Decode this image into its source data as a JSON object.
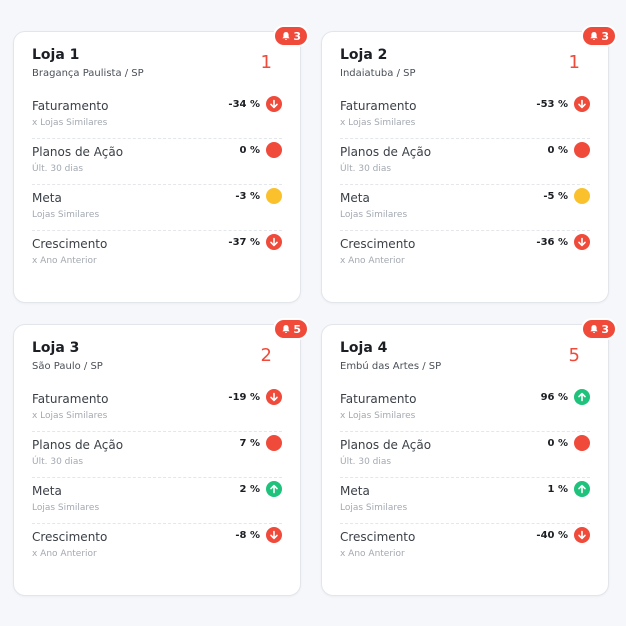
{
  "colors": {
    "red": "#f04a3a",
    "yellow": "#fbc12d",
    "green": "#1fc27b"
  },
  "cards": [
    {
      "title": "Loja 1",
      "location": "Bragança Paulista / SP",
      "rank": "1",
      "alerts": "3",
      "metrics": [
        {
          "label": "Faturamento",
          "sub": "x Lojas Similares",
          "value": "-34 %",
          "status": "down-arrow-icon"
        },
        {
          "label": "Planos de Ação",
          "sub": "Últ. 30 dias",
          "value": "0 %",
          "status": "red-dot"
        },
        {
          "label": "Meta",
          "sub": "Lojas Similares",
          "value": "-3 %",
          "status": "yellow-dot"
        },
        {
          "label": "Crescimento",
          "sub": "x Ano Anterior",
          "value": "-37 %",
          "status": "down-arrow-icon"
        }
      ]
    },
    {
      "title": "Loja 2",
      "location": "Indaiatuba / SP",
      "rank": "1",
      "alerts": "3",
      "metrics": [
        {
          "label": "Faturamento",
          "sub": "x Lojas Similares",
          "value": "-53 %",
          "status": "down-arrow-icon"
        },
        {
          "label": "Planos de Ação",
          "sub": "Últ. 30 dias",
          "value": "0 %",
          "status": "red-dot"
        },
        {
          "label": "Meta",
          "sub": "Lojas Similares",
          "value": "-5 %",
          "status": "yellow-dot"
        },
        {
          "label": "Crescimento",
          "sub": "x Ano Anterior",
          "value": "-36 %",
          "status": "down-arrow-icon"
        }
      ]
    },
    {
      "title": "Loja 3",
      "location": "São Paulo / SP",
      "rank": "2",
      "alerts": "5",
      "metrics": [
        {
          "label": "Faturamento",
          "sub": "x Lojas Similares",
          "value": "-19 %",
          "status": "down-arrow-icon"
        },
        {
          "label": "Planos de Ação",
          "sub": "Últ. 30 dias",
          "value": "7 %",
          "status": "red-dot"
        },
        {
          "label": "Meta",
          "sub": "Lojas Similares",
          "value": "2 %",
          "status": "up-arrow-icon"
        },
        {
          "label": "Crescimento",
          "sub": "x Ano Anterior",
          "value": "-8 %",
          "status": "down-arrow-icon"
        }
      ]
    },
    {
      "title": "Loja 4",
      "location": "Embú das Artes / SP",
      "rank": "5",
      "alerts": "3",
      "metrics": [
        {
          "label": "Faturamento",
          "sub": "x Lojas Similares",
          "value": "96 %",
          "status": "up-arrow-icon"
        },
        {
          "label": "Planos de Ação",
          "sub": "Últ. 30 dias",
          "value": "0 %",
          "status": "red-dot"
        },
        {
          "label": "Meta",
          "sub": "Lojas Similares",
          "value": "1 %",
          "status": "up-arrow-icon"
        },
        {
          "label": "Crescimento",
          "sub": "x Ano Anterior",
          "value": "-40 %",
          "status": "down-arrow-icon"
        }
      ]
    }
  ]
}
